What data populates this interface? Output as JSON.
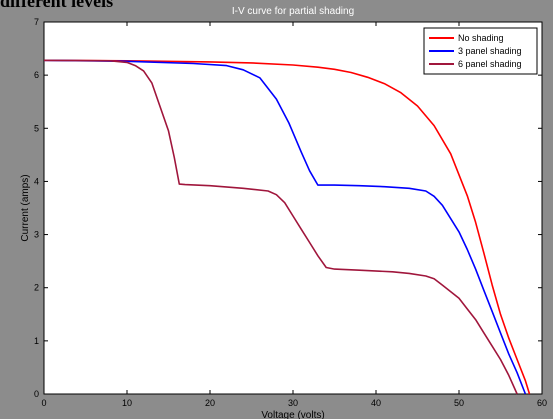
{
  "caption": "different levels",
  "chart_data": {
    "type": "line",
    "title": "I-V curve for partial shading",
    "xlabel": "Voltage (volts)",
    "ylabel": "Current (amps)",
    "xlim": [
      0,
      60
    ],
    "ylim": [
      0,
      7
    ],
    "xticks": [
      0,
      10,
      20,
      30,
      40,
      50,
      60
    ],
    "yticks": [
      0,
      1,
      2,
      3,
      4,
      5,
      6,
      7
    ],
    "grid": false,
    "legend_position": "top-right",
    "series": [
      {
        "name": "No shading",
        "color": "#ff0000",
        "x": [
          0,
          10,
          20,
          25,
          30,
          33,
          35,
          37,
          39,
          41,
          43,
          45,
          47,
          49,
          51,
          52,
          53,
          54,
          55,
          56,
          57,
          58,
          58.5
        ],
        "y": [
          6.28,
          6.27,
          6.25,
          6.23,
          6.19,
          6.15,
          6.11,
          6.05,
          5.96,
          5.84,
          5.67,
          5.42,
          5.05,
          4.52,
          3.73,
          3.23,
          2.65,
          2.05,
          1.5,
          1.05,
          0.65,
          0.25,
          0
        ]
      },
      {
        "name": "3 panel shading",
        "color": "#0000ff",
        "x": [
          0,
          10,
          18,
          22,
          24,
          26,
          28,
          29.5,
          31,
          32,
          33,
          35,
          38,
          41,
          44,
          46,
          47,
          48,
          50,
          51,
          52,
          53,
          54,
          55,
          56,
          57,
          58
        ],
        "y": [
          6.28,
          6.26,
          6.22,
          6.18,
          6.1,
          5.95,
          5.55,
          5.1,
          4.55,
          4.2,
          3.93,
          3.93,
          3.92,
          3.9,
          3.87,
          3.82,
          3.72,
          3.55,
          3.05,
          2.72,
          2.35,
          1.95,
          1.55,
          1.15,
          0.75,
          0.4,
          0
        ]
      },
      {
        "name": "6 panel shading",
        "color": "#a0163c",
        "x": [
          0,
          8,
          10,
          11,
          12,
          13,
          14,
          15,
          15.7,
          16.3,
          17,
          20,
          24,
          27,
          28,
          29,
          30,
          31,
          32,
          33,
          34,
          35,
          38,
          42,
          44,
          46,
          47,
          48,
          50,
          51,
          52,
          53,
          54,
          55,
          56,
          57
        ],
        "y": [
          6.28,
          6.27,
          6.24,
          6.18,
          6.08,
          5.85,
          5.4,
          4.95,
          4.45,
          3.95,
          3.94,
          3.92,
          3.87,
          3.82,
          3.75,
          3.6,
          3.35,
          3.1,
          2.85,
          2.6,
          2.38,
          2.35,
          2.33,
          2.3,
          2.27,
          2.22,
          2.17,
          2.05,
          1.8,
          1.6,
          1.4,
          1.15,
          0.9,
          0.65,
          0.35,
          0
        ]
      }
    ]
  }
}
